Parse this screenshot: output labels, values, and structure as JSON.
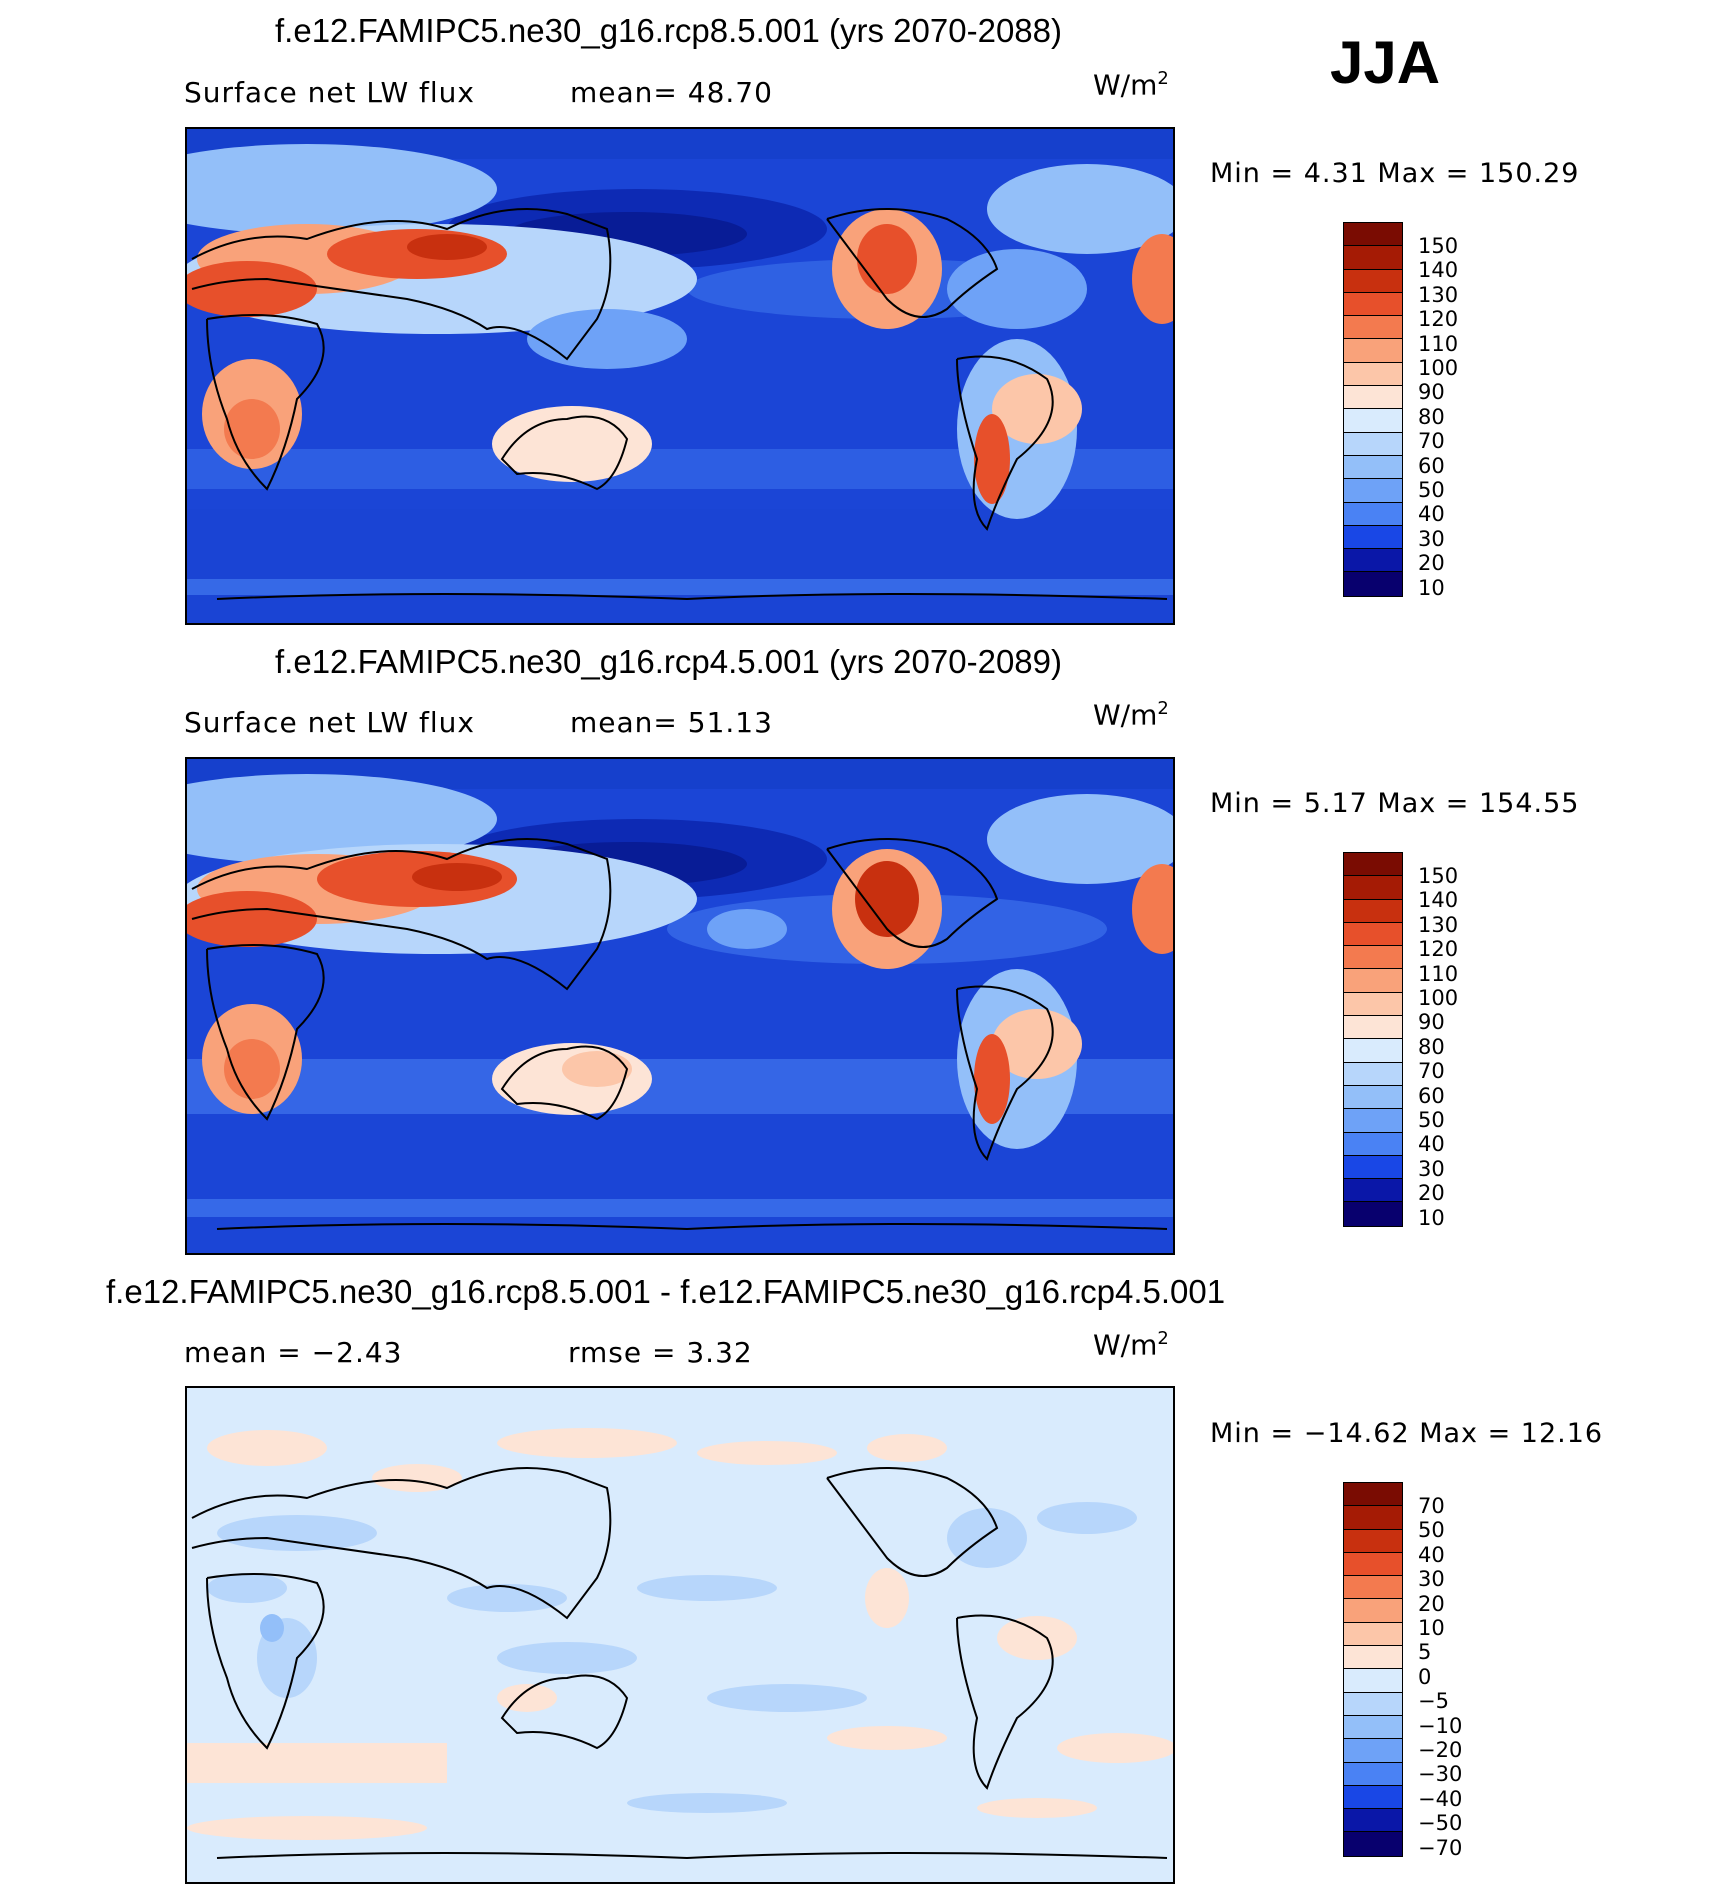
{
  "season": "JJA",
  "panels": [
    {
      "title": "f.e12.FAMIPC5.ne30_g16.rcp8.5.001 (yrs 2070-2088)",
      "left_text": "Surface net LW flux",
      "mid_text": "mean=   48.70",
      "units": "W/m",
      "units_sup": "2",
      "minmax": "Min =    4.31 Max = 150.29",
      "colors": [
        "#08006e",
        "#0a17a8",
        "#0f2dd2",
        "#1947e6",
        "#2b63ee",
        "#4a82f4",
        "#6ea2f7",
        "#93bff9",
        "#b7d6fb",
        "#d9ebfd",
        "#fde4d6",
        "#fcc6a9",
        "#f9a27a",
        "#f37a4f",
        "#e7502b",
        "#c8300f",
        "#a51b05",
        "#7a0c02"
      ],
      "labels": [
        "150",
        "140",
        "130",
        "120",
        "110",
        "100",
        "90",
        "80",
        "70",
        "60",
        "50",
        "40",
        "30",
        "20",
        "10"
      ]
    },
    {
      "title": "f.e12.FAMIPC5.ne30_g16.rcp4.5.001 (yrs 2070-2089)",
      "left_text": "Surface net LW flux",
      "mid_text": "mean=   51.13",
      "units": "W/m",
      "units_sup": "2",
      "minmax": "Min =    5.17 Max = 154.55",
      "colors": [
        "#08006e",
        "#0a17a8",
        "#0f2dd2",
        "#1947e6",
        "#2b63ee",
        "#4a82f4",
        "#6ea2f7",
        "#93bff9",
        "#b7d6fb",
        "#d9ebfd",
        "#fde4d6",
        "#fcc6a9",
        "#f9a27a",
        "#f37a4f",
        "#e7502b",
        "#c8300f",
        "#a51b05",
        "#7a0c02"
      ],
      "labels": [
        "150",
        "140",
        "130",
        "120",
        "110",
        "100",
        "90",
        "80",
        "70",
        "60",
        "50",
        "40",
        "30",
        "20",
        "10"
      ]
    },
    {
      "title": "f.e12.FAMIPC5.ne30_g16.rcp8.5.001 - f.e12.FAMIPC5.ne30_g16.rcp4.5.001",
      "left_text": "mean =   −2.43",
      "mid_text": "rmse =    3.32",
      "units": "W/m",
      "units_sup": "2",
      "minmax": "Min = −14.62 Max =   12.16",
      "colors": [
        "#08006e",
        "#0a17a8",
        "#0f2dd2",
        "#1947e6",
        "#2b63ee",
        "#4a82f4",
        "#6ea2f7",
        "#93bff9",
        "#b7d6fb",
        "#d9ebfd",
        "#fde4d6",
        "#fcc6a9",
        "#f9a27a",
        "#f37a4f",
        "#e7502b",
        "#c8300f",
        "#a51b05",
        "#7a0c02"
      ],
      "labels": [
        "70",
        "50",
        "40",
        "30",
        "20",
        "10",
        "5",
        "0",
        "−5",
        "−10",
        "−20",
        "−30",
        "−40",
        "−50",
        "−70"
      ]
    }
  ]
}
